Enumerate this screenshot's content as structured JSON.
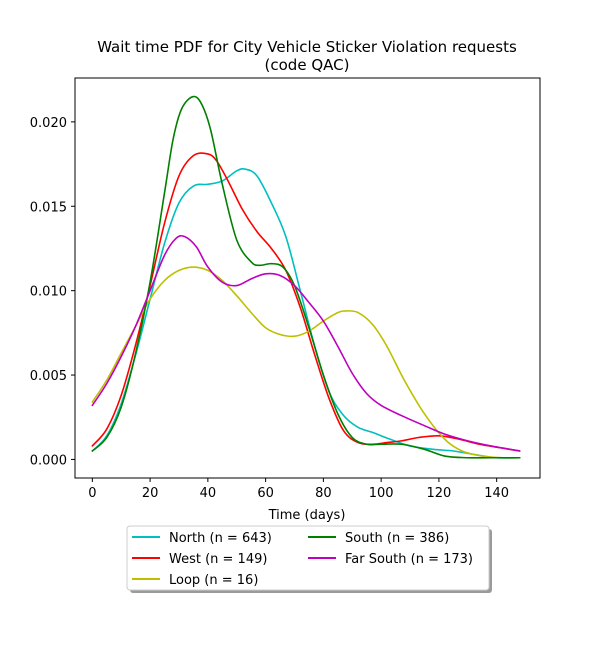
{
  "chart_data": {
    "type": "line",
    "title": "Wait time PDF for City Vehicle Sticker Violation  requests",
    "subtitle": "(code QAC)",
    "xlabel": "Time (days)",
    "ylabel": "",
    "xlim": [
      -6,
      155
    ],
    "ylim": [
      -0.0011,
      0.0226
    ],
    "xticks": [
      0,
      20,
      40,
      60,
      80,
      100,
      120,
      140
    ],
    "yticks": [
      0.0,
      0.005,
      0.01,
      0.015,
      0.02
    ],
    "ytick_labels": [
      "0.000",
      "0.005",
      "0.010",
      "0.015",
      "0.020"
    ],
    "legend": {
      "position": "below",
      "columns": 2
    },
    "series": [
      {
        "name": "North (n = 643)",
        "color": "#00bfbf",
        "x": [
          0,
          5,
          10,
          15,
          20,
          25,
          30,
          35,
          40,
          45,
          50,
          53,
          57,
          62,
          67,
          72,
          77,
          82,
          87,
          92,
          97,
          103,
          110,
          118,
          125,
          132,
          140,
          148
        ],
        "y": [
          0.0005,
          0.0014,
          0.0033,
          0.0062,
          0.0095,
          0.0128,
          0.0152,
          0.0162,
          0.0163,
          0.0165,
          0.0171,
          0.0172,
          0.0168,
          0.0152,
          0.0132,
          0.01,
          0.0067,
          0.004,
          0.0026,
          0.0019,
          0.0016,
          0.0012,
          0.0008,
          0.0006,
          0.0005,
          0.0003,
          0.0001,
          0.0001
        ]
      },
      {
        "name": "West (n = 149)",
        "color": "#ff0000",
        "x": [
          0,
          5,
          10,
          15,
          20,
          25,
          30,
          35,
          40,
          43,
          47,
          52,
          57,
          62,
          67,
          72,
          77,
          82,
          87,
          92,
          97,
          102,
          107,
          113,
          120,
          127,
          134,
          141,
          148
        ],
        "y": [
          0.0008,
          0.0018,
          0.0038,
          0.0068,
          0.0103,
          0.014,
          0.0168,
          0.018,
          0.0181,
          0.0177,
          0.0165,
          0.0148,
          0.0135,
          0.0125,
          0.0112,
          0.009,
          0.0062,
          0.0036,
          0.0017,
          0.001,
          0.0009,
          0.001,
          0.0011,
          0.0013,
          0.0014,
          0.0012,
          0.0009,
          0.0007,
          0.0005
        ]
      },
      {
        "name": "Loop (n = 16)",
        "color": "#bfbf00",
        "x": [
          0,
          5,
          10,
          15,
          20,
          25,
          30,
          35,
          40,
          45,
          50,
          55,
          60,
          65,
          70,
          75,
          80,
          85,
          88,
          92,
          97,
          102,
          108,
          115,
          122,
          128,
          135,
          142,
          148
        ],
        "y": [
          0.0034,
          0.0047,
          0.0063,
          0.0079,
          0.0095,
          0.0106,
          0.0112,
          0.0114,
          0.0112,
          0.0106,
          0.0097,
          0.0087,
          0.0078,
          0.0074,
          0.0073,
          0.0076,
          0.0082,
          0.0087,
          0.0088,
          0.0087,
          0.008,
          0.0067,
          0.0047,
          0.0027,
          0.0012,
          0.0005,
          0.0002,
          0.0001,
          0.0001
        ]
      },
      {
        "name": "South (n = 386)",
        "color": "#008000",
        "x": [
          0,
          5,
          10,
          15,
          20,
          25,
          28,
          31,
          35,
          38,
          41,
          45,
          50,
          55,
          58,
          62,
          66,
          70,
          75,
          80,
          85,
          90,
          95,
          100,
          107,
          115,
          122,
          130,
          138,
          148
        ],
        "y": [
          0.0005,
          0.0013,
          0.0031,
          0.0063,
          0.0105,
          0.0158,
          0.019,
          0.0208,
          0.0215,
          0.021,
          0.0195,
          0.0163,
          0.013,
          0.0117,
          0.0115,
          0.0116,
          0.0114,
          0.0103,
          0.0078,
          0.005,
          0.0027,
          0.0013,
          0.0009,
          0.0009,
          0.0009,
          0.0006,
          0.0002,
          0.0001,
          0.0001,
          0.0001
        ]
      },
      {
        "name": "Far South (n = 173)",
        "color": "#bf00bf",
        "x": [
          0,
          5,
          10,
          15,
          20,
          25,
          29,
          32,
          36,
          40,
          45,
          50,
          55,
          60,
          65,
          70,
          75,
          80,
          85,
          90,
          95,
          100,
          107,
          115,
          122,
          130,
          138,
          148
        ],
        "y": [
          0.0032,
          0.0045,
          0.0061,
          0.0079,
          0.01,
          0.0121,
          0.0131,
          0.0132,
          0.0126,
          0.0114,
          0.0105,
          0.0103,
          0.0107,
          0.011,
          0.0109,
          0.0103,
          0.0093,
          0.0082,
          0.0067,
          0.0051,
          0.0039,
          0.0032,
          0.0026,
          0.002,
          0.0015,
          0.0011,
          0.0008,
          0.0005
        ]
      }
    ]
  }
}
